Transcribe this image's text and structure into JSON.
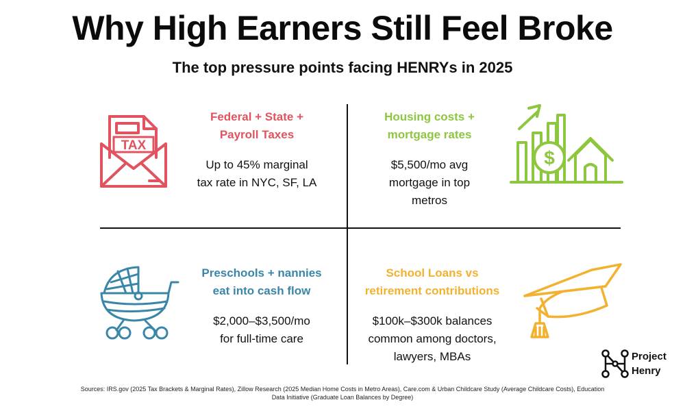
{
  "title": "Why High Earners Still Feel Broke",
  "subtitle": "The top pressure points facing HENRYs in 2025",
  "quadrants": [
    {
      "heading_line1": "Federal + State +",
      "heading_line2": "Payroll Taxes",
      "body_line1": "Up to 45% marginal",
      "body_line2": "tax rate in NYC, SF, LA",
      "body_line3": "",
      "color": "#e0535f",
      "icon": "tax-envelope-icon",
      "icon_text": "TAX"
    },
    {
      "heading_line1": "Housing costs +",
      "heading_line2": "mortgage rates",
      "body_line1": "$5,500/mo avg",
      "body_line2": "mortgage in top",
      "body_line3": "metros",
      "color": "#8dc63f",
      "icon": "house-growth-chart-icon",
      "icon_text": "$"
    },
    {
      "heading_line1": "Preschools + nannies",
      "heading_line2": "eat into cash flow",
      "body_line1": "$2,000–$3,500/mo",
      "body_line2": "for full-time care",
      "body_line3": "",
      "color": "#3a86a8",
      "icon": "baby-stroller-icon"
    },
    {
      "heading_line1": "School Loans vs",
      "heading_line2": "retirement contributions",
      "body_line1": "$100k–$300k balances",
      "body_line2": "common among doctors,",
      "body_line3": "lawyers, MBAs",
      "color": "#f2b230",
      "icon": "graduation-cap-icon"
    }
  ],
  "brand": {
    "line1": "Project",
    "line2": "Henry",
    "icon": "network-logo-icon"
  },
  "sources": {
    "line1": "Sources:  IRS.gov (2025 Tax Brackets & Marginal Rates), Zillow Research (2025 Median Home Costs in Metro Areas), Care.com & Urban Childcare Study (Average Childcare Costs), Education",
    "line2": "Data Initiative (Graduate Loan Balances by Degree)"
  }
}
